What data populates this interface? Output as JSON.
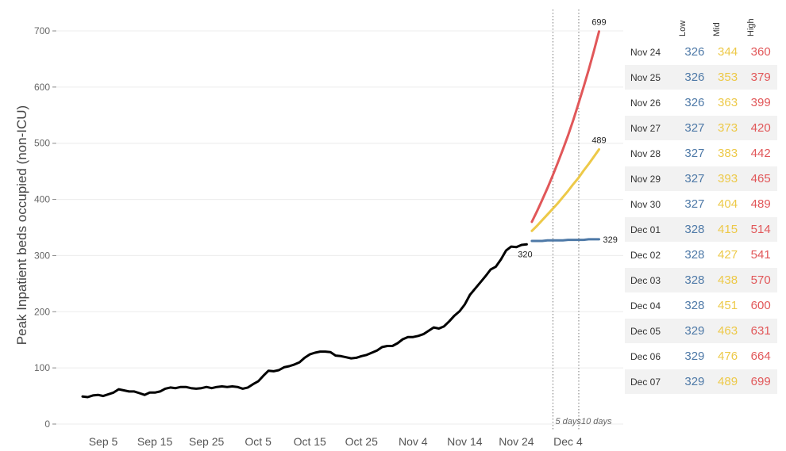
{
  "chart_data": {
    "type": "line",
    "title": "",
    "xlabel": "",
    "ylabel": "Peak Inpatient beds occupied (non-ICU)",
    "ylim": [
      0,
      700
    ],
    "y_ticks": [
      "0",
      "100",
      "200",
      "300",
      "400",
      "500",
      "600",
      "700"
    ],
    "x_ticks": [
      "Sep 5",
      "Sep 15",
      "Sep 25",
      "Oct 5",
      "Oct 15",
      "Oct 25",
      "Nov 4",
      "Nov 14",
      "Nov 24",
      "Dec 4"
    ],
    "grid": true,
    "historical": {
      "color": "#000000",
      "values": [
        49,
        48,
        51,
        52,
        50,
        53,
        56,
        62,
        60,
        58,
        58,
        55,
        52,
        56,
        56,
        58,
        63,
        65,
        64,
        66,
        66,
        64,
        63,
        64,
        66,
        64,
        66,
        67,
        66,
        67,
        66,
        63,
        65,
        71,
        76,
        86,
        95,
        94,
        96,
        101,
        103,
        106,
        110,
        118,
        124,
        127,
        129,
        129,
        128,
        122,
        121,
        119,
        117,
        118,
        121,
        123,
        127,
        131,
        137,
        139,
        139,
        144,
        151,
        155,
        155,
        157,
        160,
        166,
        172,
        170,
        174,
        183,
        193,
        201,
        213,
        230,
        241,
        252,
        263,
        275,
        280,
        293,
        309,
        316,
        315,
        319,
        320
      ],
      "end_label": "320"
    },
    "projection_dates": [
      "Nov 24",
      "Nov 25",
      "Nov 26",
      "Nov 27",
      "Nov 28",
      "Nov 29",
      "Nov 30",
      "Dec 01",
      "Dec 02",
      "Dec 03",
      "Dec 04",
      "Dec 05",
      "Dec 06",
      "Dec 07"
    ],
    "series": [
      {
        "name": "Low",
        "color": "#4e79a7",
        "values": [
          326,
          326,
          326,
          327,
          327,
          327,
          327,
          328,
          328,
          328,
          328,
          329,
          329,
          329
        ],
        "end_label": "329"
      },
      {
        "name": "Mid",
        "color": "#edc948",
        "values": [
          344,
          353,
          363,
          373,
          383,
          393,
          404,
          415,
          427,
          438,
          451,
          463,
          476,
          489
        ],
        "end_label": "489"
      },
      {
        "name": "High",
        "color": "#e15759",
        "values": [
          360,
          379,
          399,
          420,
          442,
          465,
          489,
          514,
          541,
          570,
          600,
          631,
          664,
          699
        ],
        "end_label": "699"
      }
    ],
    "markers": [
      {
        "label": "5 days",
        "date": "Nov 28"
      },
      {
        "label": "10 days",
        "date": "Dec 03"
      }
    ]
  },
  "table": {
    "headers": [
      "Low",
      "Mid",
      "High"
    ],
    "rows": [
      {
        "date": "Nov 24",
        "low": "326",
        "mid": "344",
        "high": "360"
      },
      {
        "date": "Nov 25",
        "low": "326",
        "mid": "353",
        "high": "379"
      },
      {
        "date": "Nov 26",
        "low": "326",
        "mid": "363",
        "high": "399"
      },
      {
        "date": "Nov 27",
        "low": "327",
        "mid": "373",
        "high": "420"
      },
      {
        "date": "Nov 28",
        "low": "327",
        "mid": "383",
        "high": "442"
      },
      {
        "date": "Nov 29",
        "low": "327",
        "mid": "393",
        "high": "465"
      },
      {
        "date": "Nov 30",
        "low": "327",
        "mid": "404",
        "high": "489"
      },
      {
        "date": "Dec 01",
        "low": "328",
        "mid": "415",
        "high": "514"
      },
      {
        "date": "Dec 02",
        "low": "328",
        "mid": "427",
        "high": "541"
      },
      {
        "date": "Dec 03",
        "low": "328",
        "mid": "438",
        "high": "570"
      },
      {
        "date": "Dec 04",
        "low": "328",
        "mid": "451",
        "high": "600"
      },
      {
        "date": "Dec 05",
        "low": "329",
        "mid": "463",
        "high": "631"
      },
      {
        "date": "Dec 06",
        "low": "329",
        "mid": "476",
        "high": "664"
      },
      {
        "date": "Dec 07",
        "low": "329",
        "mid": "489",
        "high": "699"
      }
    ]
  }
}
